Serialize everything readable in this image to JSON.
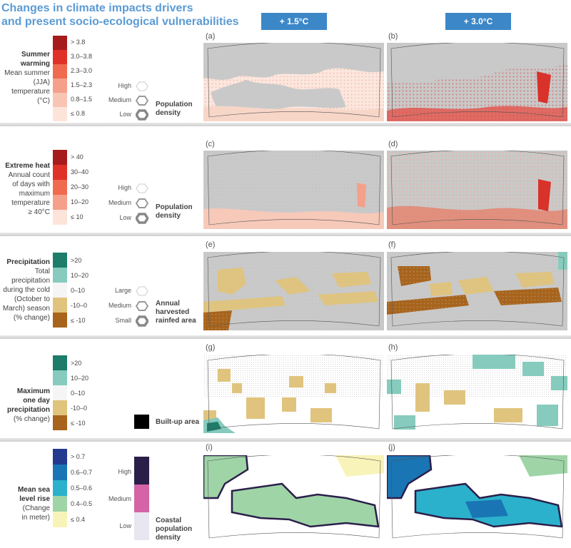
{
  "title": [
    "Changes in climate impacts drivers",
    "and present socio-ecological vulnerabilities"
  ],
  "scenarios": [
    "+ 1.5°C",
    "+ 3.0°C"
  ],
  "colors": {
    "warm": [
      "#a61c1c",
      "#e03128",
      "#ef6a4f",
      "#f4a08a",
      "#f8c5b5",
      "#fde4da"
    ],
    "precip": [
      "#1d7c6a",
      "#86cbbd",
      "#f5f5f5",
      "#e0c47e",
      "#a8641c"
    ],
    "sea": [
      "#233a8f",
      "#1a75b4",
      "#2bb1cc",
      "#9fd4a7",
      "#f8f3b8"
    ],
    "coastal": [
      "#2b1f4a",
      "#d563a7",
      "#e8e6f0"
    ],
    "land": "#c9c9c9",
    "scenario_bg": "#3c87c8",
    "title": "#5b9bd5"
  },
  "rows": [
    {
      "label_bold": [
        "Summer",
        "warming"
      ],
      "label_rest": [
        "Mean summer",
        "(JJA)",
        "temperature",
        "(°C)"
      ],
      "classes": [
        "> 3.8",
        "3.0–3.8",
        "2.3–3.0",
        "1.5–2.3",
        "0.8–1.5",
        "≤ 0.8"
      ],
      "pop_levels": [
        "High",
        "Medium",
        "Low"
      ],
      "pop_caption": [
        "Population",
        "density"
      ],
      "panels": [
        "(a)",
        "(b)"
      ]
    },
    {
      "label_bold": [
        "Extreme heat"
      ],
      "label_rest": [
        "Annual count",
        "of days with",
        "maximum",
        "temperature",
        "≥ 40°C"
      ],
      "classes": [
        "> 40",
        "30–40",
        "20–30",
        "10–20",
        "≤ 10"
      ],
      "pop_levels": [
        "High",
        "Medium",
        "Low"
      ],
      "pop_caption": [
        "Population",
        "density"
      ],
      "panels": [
        "(c)",
        "(d)"
      ]
    },
    {
      "label_bold": [
        "Precipitation"
      ],
      "label_rest": [
        "Total",
        "precipitation",
        "during the cold",
        "(October to",
        "March) season",
        "(% change)"
      ],
      "classes": [
        ">20",
        "10–20",
        "0–10",
        "-10–0",
        "≤ -10"
      ],
      "pop_levels": [
        "Large",
        "Medium",
        "Small"
      ],
      "pop_caption": [
        "Annual",
        "harvested",
        "rainfed area"
      ],
      "panels": [
        "(e)",
        "(f)"
      ]
    },
    {
      "label_bold": [
        "Maximum",
        "one day",
        "precipitation"
      ],
      "label_rest": [
        "(% change)"
      ],
      "classes": [
        ">20",
        "10–20",
        "0–10",
        "-10–0",
        "≤ -10"
      ],
      "builtup": "Built-up area",
      "panels": [
        "(g)",
        "(h)"
      ]
    },
    {
      "label_bold": [
        "Mean sea",
        "level rise"
      ],
      "label_rest": [
        "(Change",
        "in meter)"
      ],
      "classes": [
        "> 0.7",
        "0.6–0.7",
        "0.5–0.6",
        "0.4–0.5",
        "≤ 0.4"
      ],
      "coastal_levels": [
        "High",
        "Medium",
        "Low"
      ],
      "coastal_caption": [
        "Coastal",
        "population",
        "density"
      ],
      "panels": [
        "(i)",
        "(j)"
      ]
    }
  ]
}
